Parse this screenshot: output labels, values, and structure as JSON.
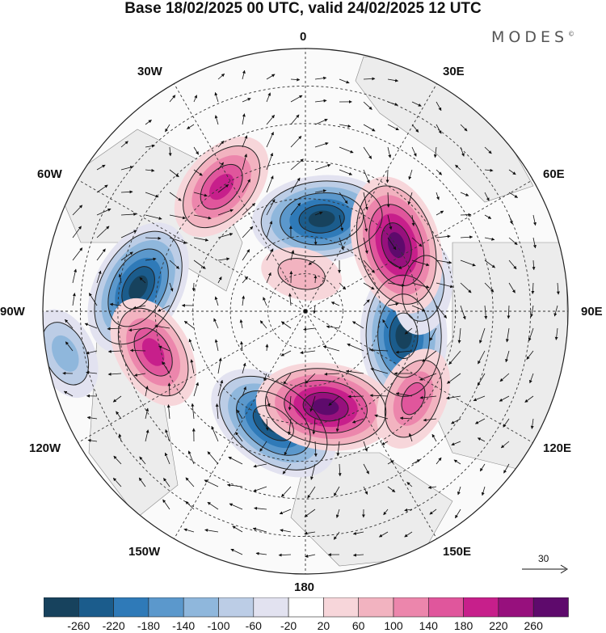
{
  "title": "Base 18/02/2025 00 UTC, valid 24/02/2025 12 UTC",
  "brand": {
    "name": "MODES",
    "mark": "©"
  },
  "longitude_labels": {
    "n0": "0",
    "e30": "30E",
    "e60": "60E",
    "e90": "90E",
    "e120": "120E",
    "e150": "150E",
    "s180": "180",
    "w150": "150W",
    "w120": "120W",
    "w90": "90W",
    "w60": "60W",
    "w30": "30W"
  },
  "wind_scale": {
    "label": "30"
  },
  "colorbar": {
    "ticks": [
      "-260",
      "-220",
      "-180",
      "-140",
      "-100",
      "-60",
      "-20",
      "20",
      "60",
      "100",
      "140",
      "180",
      "220",
      "260"
    ],
    "colors": [
      "#17425d",
      "#1b5c8c",
      "#2f7ab8",
      "#5b98cc",
      "#8fb7dc",
      "#bccde6",
      "#e2e2f0",
      "#ffffff",
      "#f7d6da",
      "#f2b3c0",
      "#ec86ac",
      "#e0569c",
      "#c71f8b",
      "#97107d",
      "#5e0a6c"
    ]
  },
  "anomaly_centers": [
    {
      "type": "negative",
      "value": -260,
      "lon": 10,
      "colat": 25
    },
    {
      "type": "negative",
      "value": -260,
      "lon": -82,
      "colat": 45
    },
    {
      "type": "negative",
      "value": -260,
      "lon": 104,
      "colat": 27
    },
    {
      "type": "negative",
      "value": -260,
      "lon": -164,
      "colat": 31
    },
    {
      "type": "negative",
      "value": -100,
      "lon": -100,
      "colat": 65
    },
    {
      "type": "negative",
      "value": -100,
      "lon": 79,
      "colat": 32
    },
    {
      "type": "positive",
      "value": 180,
      "lon": -34,
      "colat": 40
    },
    {
      "type": "positive",
      "value": 260,
      "lon": 54,
      "colat": 30
    },
    {
      "type": "positive",
      "value": 180,
      "lon": -105,
      "colat": 42
    },
    {
      "type": "positive",
      "value": 260,
      "lon": 168,
      "colat": 26
    },
    {
      "type": "positive",
      "value": 140,
      "lon": 129,
      "colat": 37
    },
    {
      "type": "positive",
      "value": 60,
      "lon": -6,
      "colat": 10
    }
  ]
}
